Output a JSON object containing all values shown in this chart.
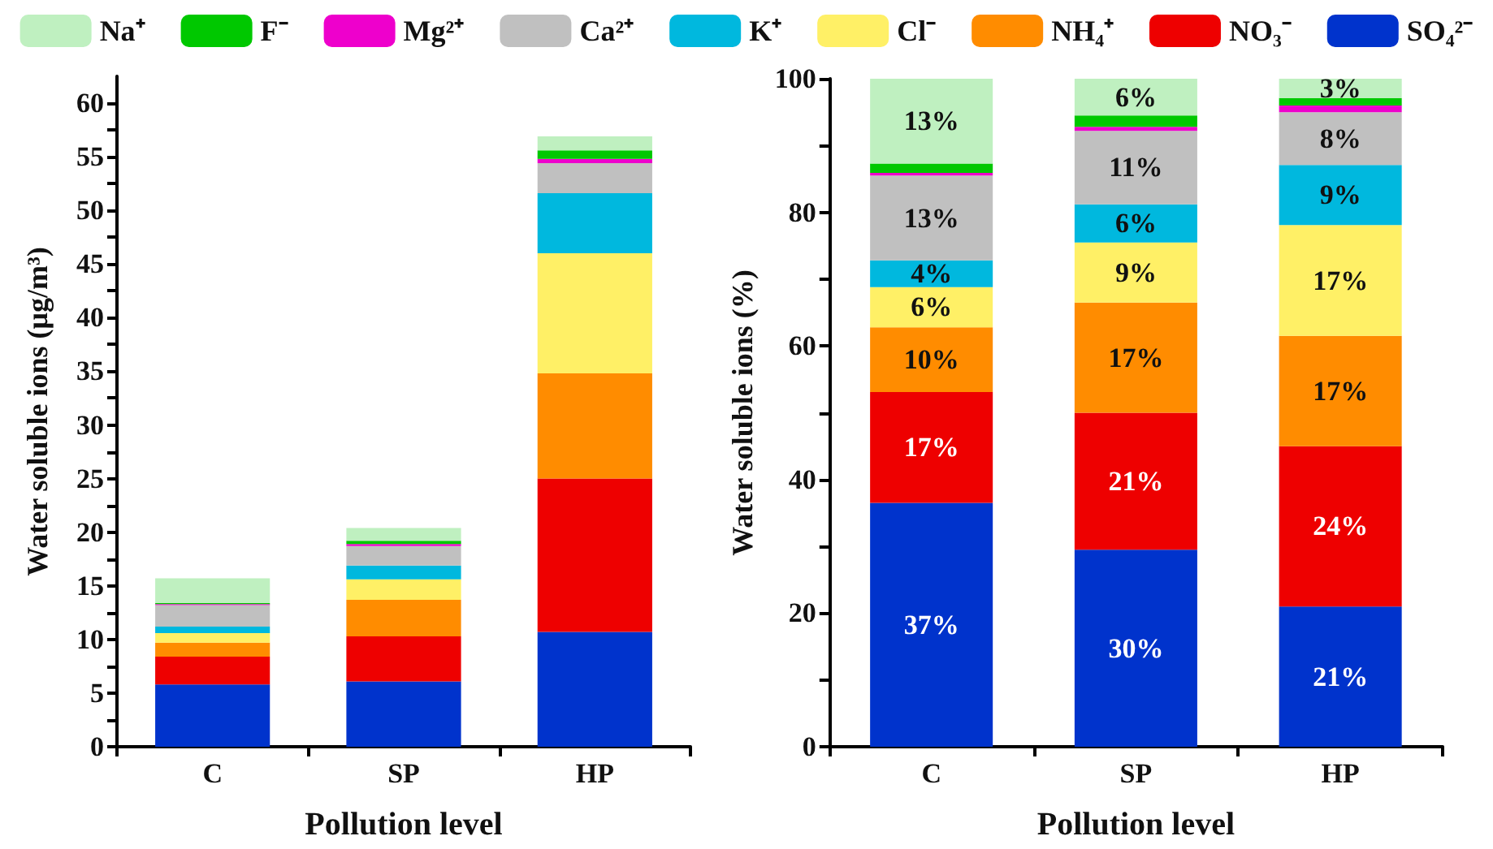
{
  "chart_data": [
    {
      "type": "bar",
      "stacked": true,
      "legend": "top",
      "grid": false,
      "xlabel": "Pollution level",
      "ylabel": "Water soluble ions (μg/m³)",
      "categories": [
        "C",
        "SP",
        "HP"
      ],
      "ylim": [
        0,
        62.5
      ],
      "yticks": [
        0,
        {
          "value": 2.5,
          "label": null
        },
        5,
        {
          "value": 7.5,
          "label": null
        },
        10,
        {
          "value": 12.5,
          "label": null
        },
        15,
        {
          "value": 17.5,
          "label": null
        },
        20,
        {
          "value": 22.5,
          "label": null
        },
        25,
        {
          "value": 27.5,
          "label": null
        },
        30,
        {
          "value": 32.5,
          "label": null
        },
        35,
        {
          "value": 37.5,
          "label": null
        },
        40,
        {
          "value": 42.5,
          "label": null
        },
        45,
        {
          "value": 47.5,
          "label": null
        },
        50,
        {
          "value": 52.5,
          "label": null
        },
        55,
        {
          "value": 57.5,
          "label": null
        },
        60
      ],
      "series": [
        {
          "name": "SO₄²⁻",
          "color": "#0033cc",
          "values": [
            5.8,
            6.1,
            10.7
          ]
        },
        {
          "name": "NO₃⁻",
          "color": "#ee0000",
          "values": [
            2.6,
            4.2,
            14.3
          ]
        },
        {
          "name": "NH₄⁺",
          "color": "#ff8c00",
          "values": [
            1.3,
            3.4,
            9.8
          ]
        },
        {
          "name": "Cl⁻",
          "color": "#fff066",
          "values": [
            0.9,
            1.9,
            11.2
          ]
        },
        {
          "name": "K⁺",
          "color": "#00b8de",
          "values": [
            0.6,
            1.3,
            5.6
          ]
        },
        {
          "name": "Ca²⁺",
          "color": "#c0c0c0",
          "values": [
            2.0,
            1.8,
            2.8
          ]
        },
        {
          "name": "Mg²⁺",
          "color": "#ee00cc",
          "values": [
            0.1,
            0.2,
            0.4
          ]
        },
        {
          "name": "F⁻",
          "color": "#00c800",
          "values": [
            0.1,
            0.3,
            0.8
          ]
        },
        {
          "name": "Na⁺",
          "color": "#bff0c0",
          "values": [
            2.3,
            1.2,
            1.3
          ]
        }
      ]
    },
    {
      "type": "bar",
      "stacked": true,
      "legend": false,
      "grid": false,
      "xlabel": "Pollution level",
      "ylabel": "Water soluble ions (%)",
      "categories": [
        "C",
        "SP",
        "HP"
      ],
      "ylim": [
        0,
        100
      ],
      "yticks": [
        0,
        {
          "value": 10,
          "label": null
        },
        20,
        {
          "value": 30,
          "label": null
        },
        40,
        {
          "value": 50,
          "label": null
        },
        60,
        {
          "value": 70,
          "label": null
        },
        80,
        {
          "value": 90,
          "label": null
        },
        100
      ],
      "series": [
        {
          "color": "#0033cc",
          "values": [
            36.5,
            29.5,
            21.0
          ],
          "value_labels": [
            "37%",
            "30%",
            "21%"
          ]
        },
        {
          "color": "#ee0000",
          "values": [
            16.6,
            20.5,
            24.0
          ],
          "value_labels": [
            "17%",
            "21%",
            "24%"
          ]
        },
        {
          "color": "#ff8c00",
          "values": [
            9.7,
            16.5,
            16.5
          ],
          "value_labels": [
            "10%",
            "17%",
            "17%"
          ]
        },
        {
          "color": "#fff066",
          "values": [
            6.0,
            9.0,
            16.6
          ],
          "value_labels": [
            "6%",
            "9%",
            "17%"
          ]
        },
        {
          "color": "#00b8de",
          "values": [
            4.0,
            5.7,
            9.0
          ],
          "value_labels": [
            "4%",
            "6%",
            "9%"
          ]
        },
        {
          "color": "#c0c0c0",
          "values": [
            12.7,
            11.0,
            7.9
          ],
          "value_labels": [
            "13%",
            "11%",
            "8%"
          ]
        },
        {
          "color": "#ee00cc",
          "values": [
            0.4,
            0.6,
            1.0
          ]
        },
        {
          "color": "#00c800",
          "values": [
            1.4,
            1.7,
            1.1
          ]
        },
        {
          "color": "#bff0c0",
          "values": [
            12.7,
            5.5,
            2.9
          ],
          "value_labels": [
            "13%",
            "6%",
            "3%"
          ]
        }
      ]
    }
  ]
}
